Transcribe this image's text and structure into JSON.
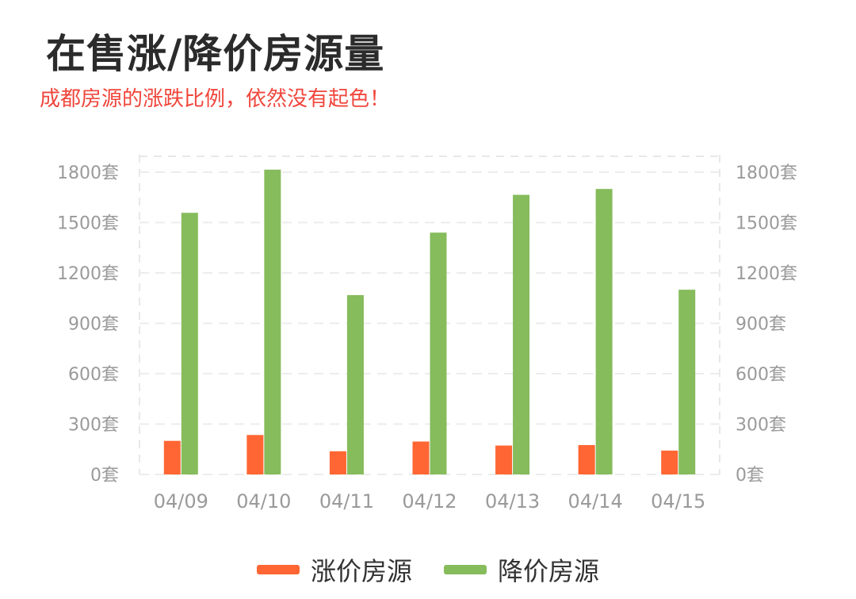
{
  "title": "在售涨/降价房源量",
  "subtitle": "成都房源的涨跌比例，依然没有起色！",
  "chart_data": {
    "type": "bar",
    "categories": [
      "04/09",
      "04/10",
      "04/11",
      "04/12",
      "04/13",
      "04/14",
      "04/15"
    ],
    "series": [
      {
        "name": "涨价房源",
        "color": "#ff6633",
        "values": [
          200,
          235,
          138,
          196,
          172,
          175,
          142
        ]
      },
      {
        "name": "降价房源",
        "color": "#86bc5c",
        "values": [
          1558,
          1815,
          1068,
          1440,
          1665,
          1700,
          1100
        ]
      }
    ],
    "yticks": [
      "0套",
      "300套",
      "600套",
      "900套",
      "1200套",
      "1500套",
      "1800套"
    ],
    "ylim": [
      0,
      1800
    ],
    "grid": true,
    "legend_position": "bottom"
  }
}
